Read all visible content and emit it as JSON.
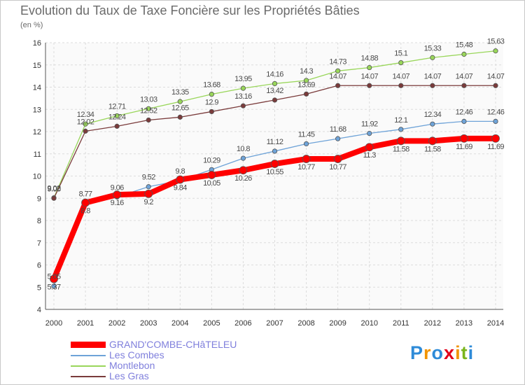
{
  "chart_data": {
    "type": "line",
    "title": "Evolution du Taux de Taxe Foncière sur les Propriétés Bâties",
    "ylabel": "(en %)",
    "xlabel": "",
    "ylim": [
      4,
      16
    ],
    "yticks": [
      "4",
      "5",
      "6",
      "7",
      "8",
      "9",
      "10",
      "11",
      "12",
      "13",
      "14",
      "15",
      "16"
    ],
    "categories": [
      "2000",
      "2001",
      "2002",
      "2003",
      "2004",
      "2005",
      "2006",
      "2007",
      "2008",
      "2009",
      "2010",
      "2011",
      "2012",
      "2013",
      "2014"
    ],
    "grid": true,
    "series": [
      {
        "name": "GRAND'COMBE-CHâTELEU",
        "color": "#ff0000",
        "values": [
          5.37,
          8.8,
          9.16,
          9.2,
          9.84,
          10.05,
          10.26,
          10.55,
          10.77,
          10.77,
          11.3,
          11.58,
          11.58,
          11.69,
          11.69
        ],
        "labels": [
          "5.37",
          "8.8",
          "9.16",
          "9.2",
          "9.84",
          "10.05",
          "10.26",
          "10.55",
          "10.77",
          "10.77",
          "11.3",
          "11.58",
          "11.58",
          "11.69",
          "11.69"
        ]
      },
      {
        "name": "Les Combes",
        "color": "#6ea3d8",
        "values": [
          5.05,
          8.77,
          9.06,
          9.52,
          9.8,
          10.29,
          10.8,
          11.12,
          11.45,
          11.68,
          11.92,
          12.1,
          12.34,
          12.46,
          12.46
        ],
        "labels": [
          "5.05",
          "8.77",
          "9.06",
          "9.52",
          "9.8",
          "10.29",
          "10.8",
          "11.12",
          "11.45",
          "11.68",
          "11.92",
          "12.1",
          "12.34",
          "12.46",
          "12.46"
        ]
      },
      {
        "name": "Montlebon",
        "color": "#99d65a",
        "values": [
          9.02,
          12.34,
          12.71,
          13.03,
          13.35,
          13.68,
          13.95,
          14.16,
          14.3,
          14.73,
          14.88,
          15.1,
          15.33,
          15.48,
          15.63
        ],
        "labels": [
          "9.02",
          "12.34",
          "12.71",
          "13.03",
          "13.35",
          "13.68",
          "13.95",
          "14.16",
          "14.3",
          "14.73",
          "14.88",
          "15.1",
          "15.33",
          "15.48",
          "15.63"
        ]
      },
      {
        "name": "Les Gras",
        "color": "#7a3b3b",
        "values": [
          9.0,
          12.02,
          12.24,
          12.52,
          12.65,
          12.9,
          13.16,
          13.42,
          13.69,
          14.07,
          14.07,
          14.07,
          14.07,
          14.07,
          14.07
        ],
        "labels": [
          "9.00",
          "12.02",
          "12.24",
          "12.52",
          "12.65",
          "12.9",
          "13.16",
          "13.42",
          "13.69",
          "14.07",
          "14.07",
          "14.07",
          "14.07",
          "14.07",
          "14.07"
        ]
      }
    ]
  },
  "legend": [
    {
      "label": "GRAND'COMBE-CHâTELEU",
      "color": "#ff0000"
    },
    {
      "label": "Les Combes",
      "color": "#6ea3d8"
    },
    {
      "label": "Montlebon",
      "color": "#99d65a"
    },
    {
      "label": "Les Gras",
      "color": "#7a3b3b"
    }
  ],
  "logo": {
    "text": "Proxiti",
    "letter_colors": [
      "#2e8bd8",
      "#f29400",
      "#2e8bd8",
      "#e2001a",
      "#f29400",
      "#7ab51d",
      "#2e8bd8"
    ]
  }
}
